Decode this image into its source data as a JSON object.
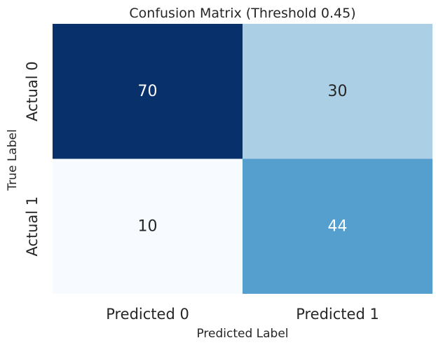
{
  "chart_data": {
    "type": "heatmap",
    "title": "Confusion Matrix (Threshold 0.45)",
    "xlabel": "Predicted Label",
    "ylabel": "True Label",
    "x_categories": [
      "Predicted 0",
      "Predicted 1"
    ],
    "y_categories": [
      "Actual 0",
      "Actual 1"
    ],
    "values": [
      [
        70,
        30
      ],
      [
        10,
        44
      ]
    ],
    "colormap": "Blues",
    "colorbar": false,
    "color_range": [
      10,
      70
    ],
    "cell_colors": [
      [
        "#08306b",
        "#abcfe5"
      ],
      [
        "#f7fbff",
        "#559fcf"
      ]
    ],
    "label_colors": [
      [
        "#ffffff",
        "#262626"
      ],
      [
        "#262626",
        "#ffffff"
      ]
    ]
  }
}
